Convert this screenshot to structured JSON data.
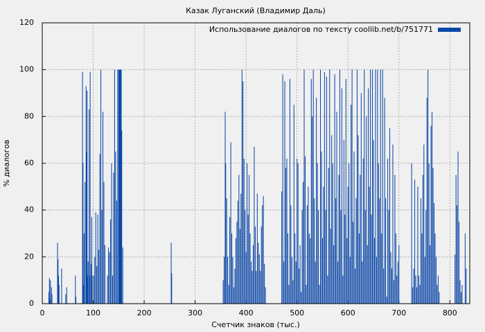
{
  "chart_data": {
    "type": "bar",
    "title": "Казак Луганский (Владимир Даль)",
    "x_label": "Счетчик знаков (тыс.)",
    "y_label": "% диалогов",
    "x": [
      13,
      14,
      15,
      16,
      18,
      19,
      30,
      31,
      32,
      33,
      38,
      46,
      48,
      65,
      66,
      79,
      80,
      81,
      82,
      84,
      86,
      87,
      88,
      89,
      90,
      92,
      93,
      94,
      96,
      97,
      98,
      101,
      103,
      105,
      107,
      109,
      111,
      113,
      115,
      117,
      119,
      121,
      123,
      128,
      130,
      132,
      134,
      136,
      138,
      140,
      142,
      144,
      146,
      148,
      150,
      151,
      152,
      153,
      154,
      155,
      156,
      158,
      253,
      254,
      355,
      357,
      359,
      360,
      362,
      364,
      366,
      368,
      370,
      372,
      374,
      376,
      378,
      380,
      382,
      384,
      386,
      388,
      390,
      392,
      394,
      396,
      398,
      400,
      402,
      404,
      406,
      408,
      410,
      412,
      414,
      416,
      418,
      420,
      422,
      424,
      426,
      428,
      430,
      432,
      434,
      436,
      438,
      470,
      472,
      474,
      476,
      478,
      480,
      482,
      484,
      486,
      488,
      490,
      492,
      494,
      496,
      498,
      500,
      502,
      504,
      506,
      508,
      510,
      512,
      514,
      516,
      518,
      520,
      522,
      524,
      526,
      528,
      530,
      532,
      534,
      536,
      538,
      540,
      542,
      544,
      546,
      548,
      550,
      552,
      554,
      556,
      558,
      560,
      562,
      564,
      566,
      568,
      570,
      572,
      574,
      576,
      578,
      580,
      582,
      584,
      586,
      588,
      590,
      592,
      594,
      596,
      598,
      600,
      602,
      604,
      606,
      608,
      610,
      612,
      614,
      616,
      618,
      620,
      622,
      624,
      626,
      628,
      630,
      632,
      634,
      636,
      638,
      640,
      642,
      644,
      646,
      648,
      650,
      652,
      654,
      656,
      658,
      660,
      662,
      664,
      666,
      668,
      670,
      672,
      674,
      676,
      678,
      680,
      682,
      684,
      686,
      688,
      690,
      692,
      694,
      696,
      698,
      700,
      725,
      727,
      729,
      731,
      733,
      735,
      737,
      739,
      741,
      743,
      745,
      747,
      749,
      751,
      753,
      755,
      757,
      759,
      761,
      763,
      765,
      767,
      769,
      771,
      773,
      775,
      777,
      779,
      810,
      812,
      814,
      816,
      818,
      820,
      822,
      824,
      830,
      832
    ],
    "series": [
      {
        "name": "Использование диалогов по тексту coollib.net/b/751771",
        "color": "#0a46a6",
        "values": [
          5,
          11,
          2,
          10,
          7,
          4,
          26,
          19,
          12,
          8,
          15,
          4,
          7,
          12,
          3,
          99,
          60,
          8,
          30,
          52,
          93,
          65,
          91,
          12,
          18,
          83,
          12,
          99,
          17,
          37,
          12,
          12,
          20,
          39,
          16,
          38,
          23,
          64,
          100,
          40,
          82,
          52,
          25,
          12,
          24,
          22,
          36,
          60,
          12,
          56,
          100,
          65,
          44,
          100,
          100,
          100,
          100,
          100,
          100,
          100,
          74,
          24,
          26,
          13,
          10,
          20,
          82,
          60,
          45,
          20,
          8,
          37,
          69,
          30,
          20,
          7,
          15,
          28,
          35,
          44,
          55,
          32,
          47,
          100,
          95,
          62,
          40,
          22,
          60,
          38,
          55,
          30,
          18,
          14,
          25,
          67,
          33,
          14,
          47,
          26,
          21,
          14,
          33,
          42,
          46,
          17,
          7,
          48,
          98,
          18,
          95,
          58,
          62,
          30,
          8,
          96,
          42,
          20,
          10,
          85,
          30,
          18,
          62,
          60,
          15,
          25,
          5,
          40,
          52,
          100,
          63,
          8,
          42,
          50,
          30,
          28,
          96,
          80,
          100,
          45,
          18,
          88,
          60,
          40,
          8,
          100,
          65,
          28,
          50,
          99,
          40,
          97,
          12,
          58,
          100,
          32,
          72,
          60,
          25,
          98,
          45,
          82,
          18,
          55,
          100,
          40,
          92,
          12,
          70,
          38,
          96,
          28,
          50,
          60,
          20,
          85,
          100,
          35,
          65,
          15,
          45,
          100,
          72,
          30,
          55,
          90,
          18,
          62,
          100,
          40,
          80,
          25,
          92,
          50,
          100,
          38,
          100,
          70,
          28,
          100,
          20,
          100,
          60,
          45,
          100,
          30,
          100,
          15,
          88,
          45,
          3,
          62,
          40,
          75,
          22,
          15,
          68,
          10,
          55,
          30,
          12,
          18,
          25,
          60,
          7,
          15,
          53,
          12,
          7,
          50,
          12,
          8,
          45,
          30,
          55,
          68,
          20,
          40,
          88,
          100,
          60,
          25,
          76,
          82,
          58,
          43,
          30,
          20,
          8,
          12,
          5,
          21,
          55,
          42,
          65,
          35,
          10,
          5,
          8,
          30,
          15
        ]
      }
    ],
    "xlim": [
      0,
      839
    ],
    "xticks": [
      0,
      100,
      200,
      300,
      400,
      500,
      600,
      700,
      800
    ],
    "ylim": [
      0,
      120
    ],
    "yticks": [
      0,
      20,
      40,
      60,
      80,
      100,
      120
    ],
    "grid": true,
    "legend": "upper right"
  }
}
